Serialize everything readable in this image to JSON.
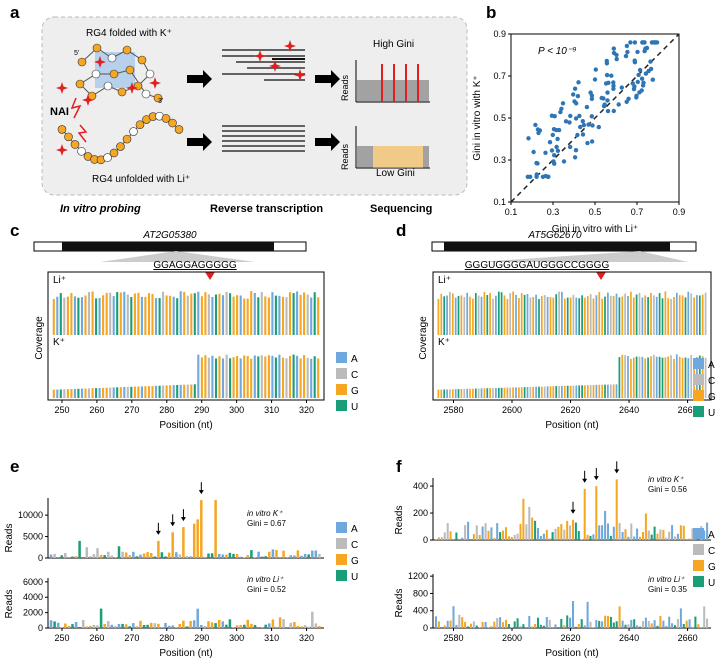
{
  "panel_labels": {
    "a": "a",
    "b": "b",
    "c": "c",
    "d": "d",
    "e": "e",
    "f": "f"
  },
  "panel_a": {
    "folded_label": "RG4 folded with K⁺",
    "unfolded_label": "RG4 unfolded with Li⁺",
    "five_prime": "5'",
    "three_prime": "3'",
    "reagent": "NAI",
    "high_gini": "High Gini",
    "low_gini": "Low Gini",
    "reads_axis": "Reads",
    "step1": "In vitro probing",
    "step2": "Reverse transcription",
    "step3": "Sequencing",
    "colors": {
      "G": "#F5A623",
      "other": "#4a4a4a",
      "reactive": "#E02020",
      "box_bg": "#eeeeee"
    }
  },
  "panel_b": {
    "annotation": "P < 10⁻⁹",
    "xlabel": "Gini in vitro with Li⁺",
    "ylabel": "Gini in vitro with K⁺",
    "ticks": [
      "0.1",
      "0.3",
      "0.5",
      "0.7",
      "0.9"
    ],
    "point_color": "#2E75B6"
  },
  "panel_c": {
    "gene": "AT2G05380",
    "motif": "GGAGGAGGGGG",
    "li_label": "Li⁺",
    "k_label": "K⁺",
    "ylabel": "Coverage",
    "xlabel": "Position (nt)",
    "xticks": [
      "250",
      "260",
      "270",
      "280",
      "290",
      "300",
      "310",
      "320"
    ]
  },
  "panel_d": {
    "gene": "AT5G62670",
    "motif": "GGGUGGGGAUGGGCCGGGG",
    "li_label": "Li⁺",
    "k_label": "K⁺",
    "ylabel": "Coverage",
    "xlabel": "Position (nt)",
    "xticks": [
      "2580",
      "2600",
      "2620",
      "2640",
      "2660"
    ]
  },
  "panel_e": {
    "top_condition": "in vitro K⁺",
    "top_gini": "Gini = 0.67",
    "bottom_condition": "in vitro Li⁺",
    "bottom_gini": "Gini = 0.52",
    "ylabel": "Reads",
    "xlabel": "Position (nt)",
    "top_yticks": [
      "0",
      "5000",
      "10000"
    ],
    "bottom_yticks": [
      "0",
      "2000",
      "4000",
      "6000"
    ],
    "xticks": [
      "250",
      "260",
      "270",
      "280",
      "290",
      "300",
      "310",
      "320"
    ]
  },
  "panel_f": {
    "top_condition": "in vitro K⁺",
    "top_gini": "Gini = 0.56",
    "bottom_condition": "in vitro Li⁺",
    "bottom_gini": "Gini = 0.35",
    "ylabel": "Reads",
    "xlabel": "Position (nt)",
    "top_yticks": [
      "0",
      "200",
      "400"
    ],
    "bottom_yticks": [
      "0",
      "400",
      "800",
      "1200"
    ],
    "xticks": [
      "2580",
      "2600",
      "2620",
      "2640",
      "2660"
    ]
  },
  "legend": [
    {
      "base": "A",
      "color": "#6FA8DC"
    },
    {
      "base": "C",
      "color": "#BBBBBB"
    },
    {
      "base": "G",
      "color": "#F5A623"
    },
    {
      "base": "U",
      "color": "#1A9E77"
    }
  ]
}
